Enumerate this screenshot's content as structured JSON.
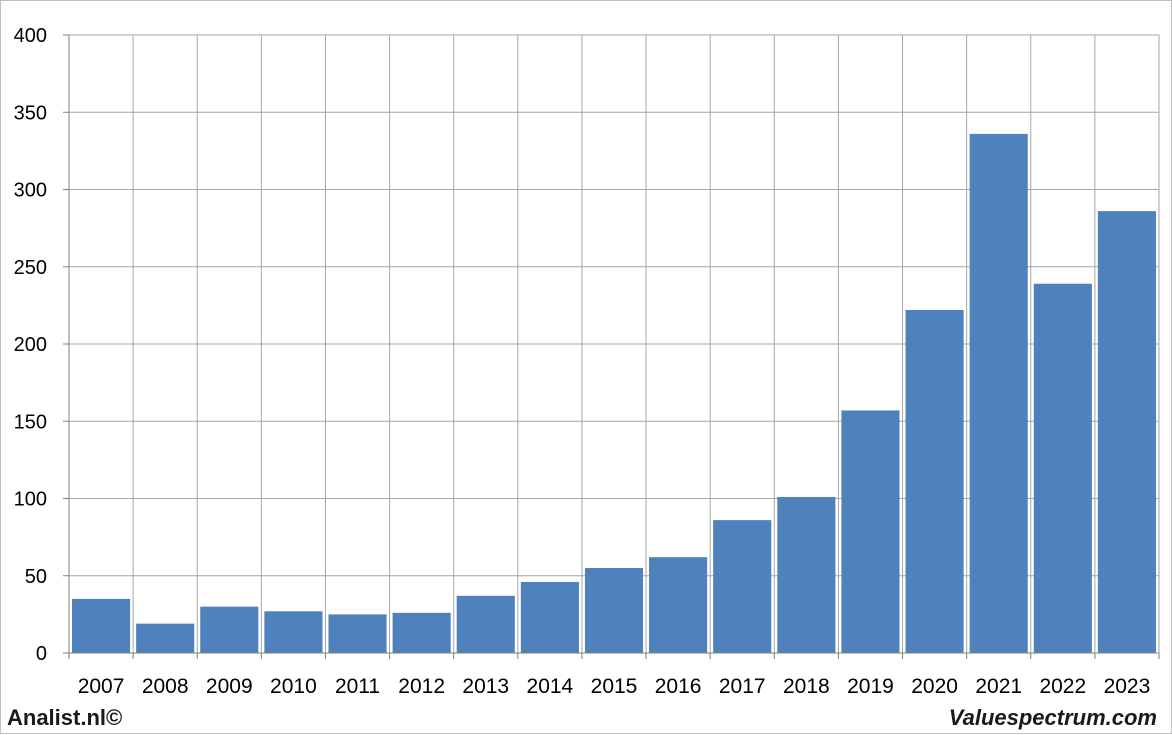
{
  "chart_data": {
    "type": "bar",
    "title": "",
    "xlabel": "",
    "ylabel": "",
    "categories": [
      "2007",
      "2008",
      "2009",
      "2010",
      "2011",
      "2012",
      "2013",
      "2014",
      "2015",
      "2016",
      "2017",
      "2018",
      "2019",
      "2020",
      "2021",
      "2022",
      "2023"
    ],
    "values": [
      35,
      19,
      30,
      27,
      25,
      26,
      37,
      46,
      55,
      62,
      86,
      101,
      157,
      222,
      336,
      239,
      286
    ],
    "ylim": [
      0,
      400
    ],
    "yticks": [
      0,
      50,
      100,
      150,
      200,
      250,
      300,
      350,
      400
    ],
    "grid": true,
    "bar_color": "#4f81bd",
    "grid_color": "#a6a6a6"
  },
  "footer": {
    "left": "Analist.nl©",
    "right": "Valuespectrum.com"
  }
}
